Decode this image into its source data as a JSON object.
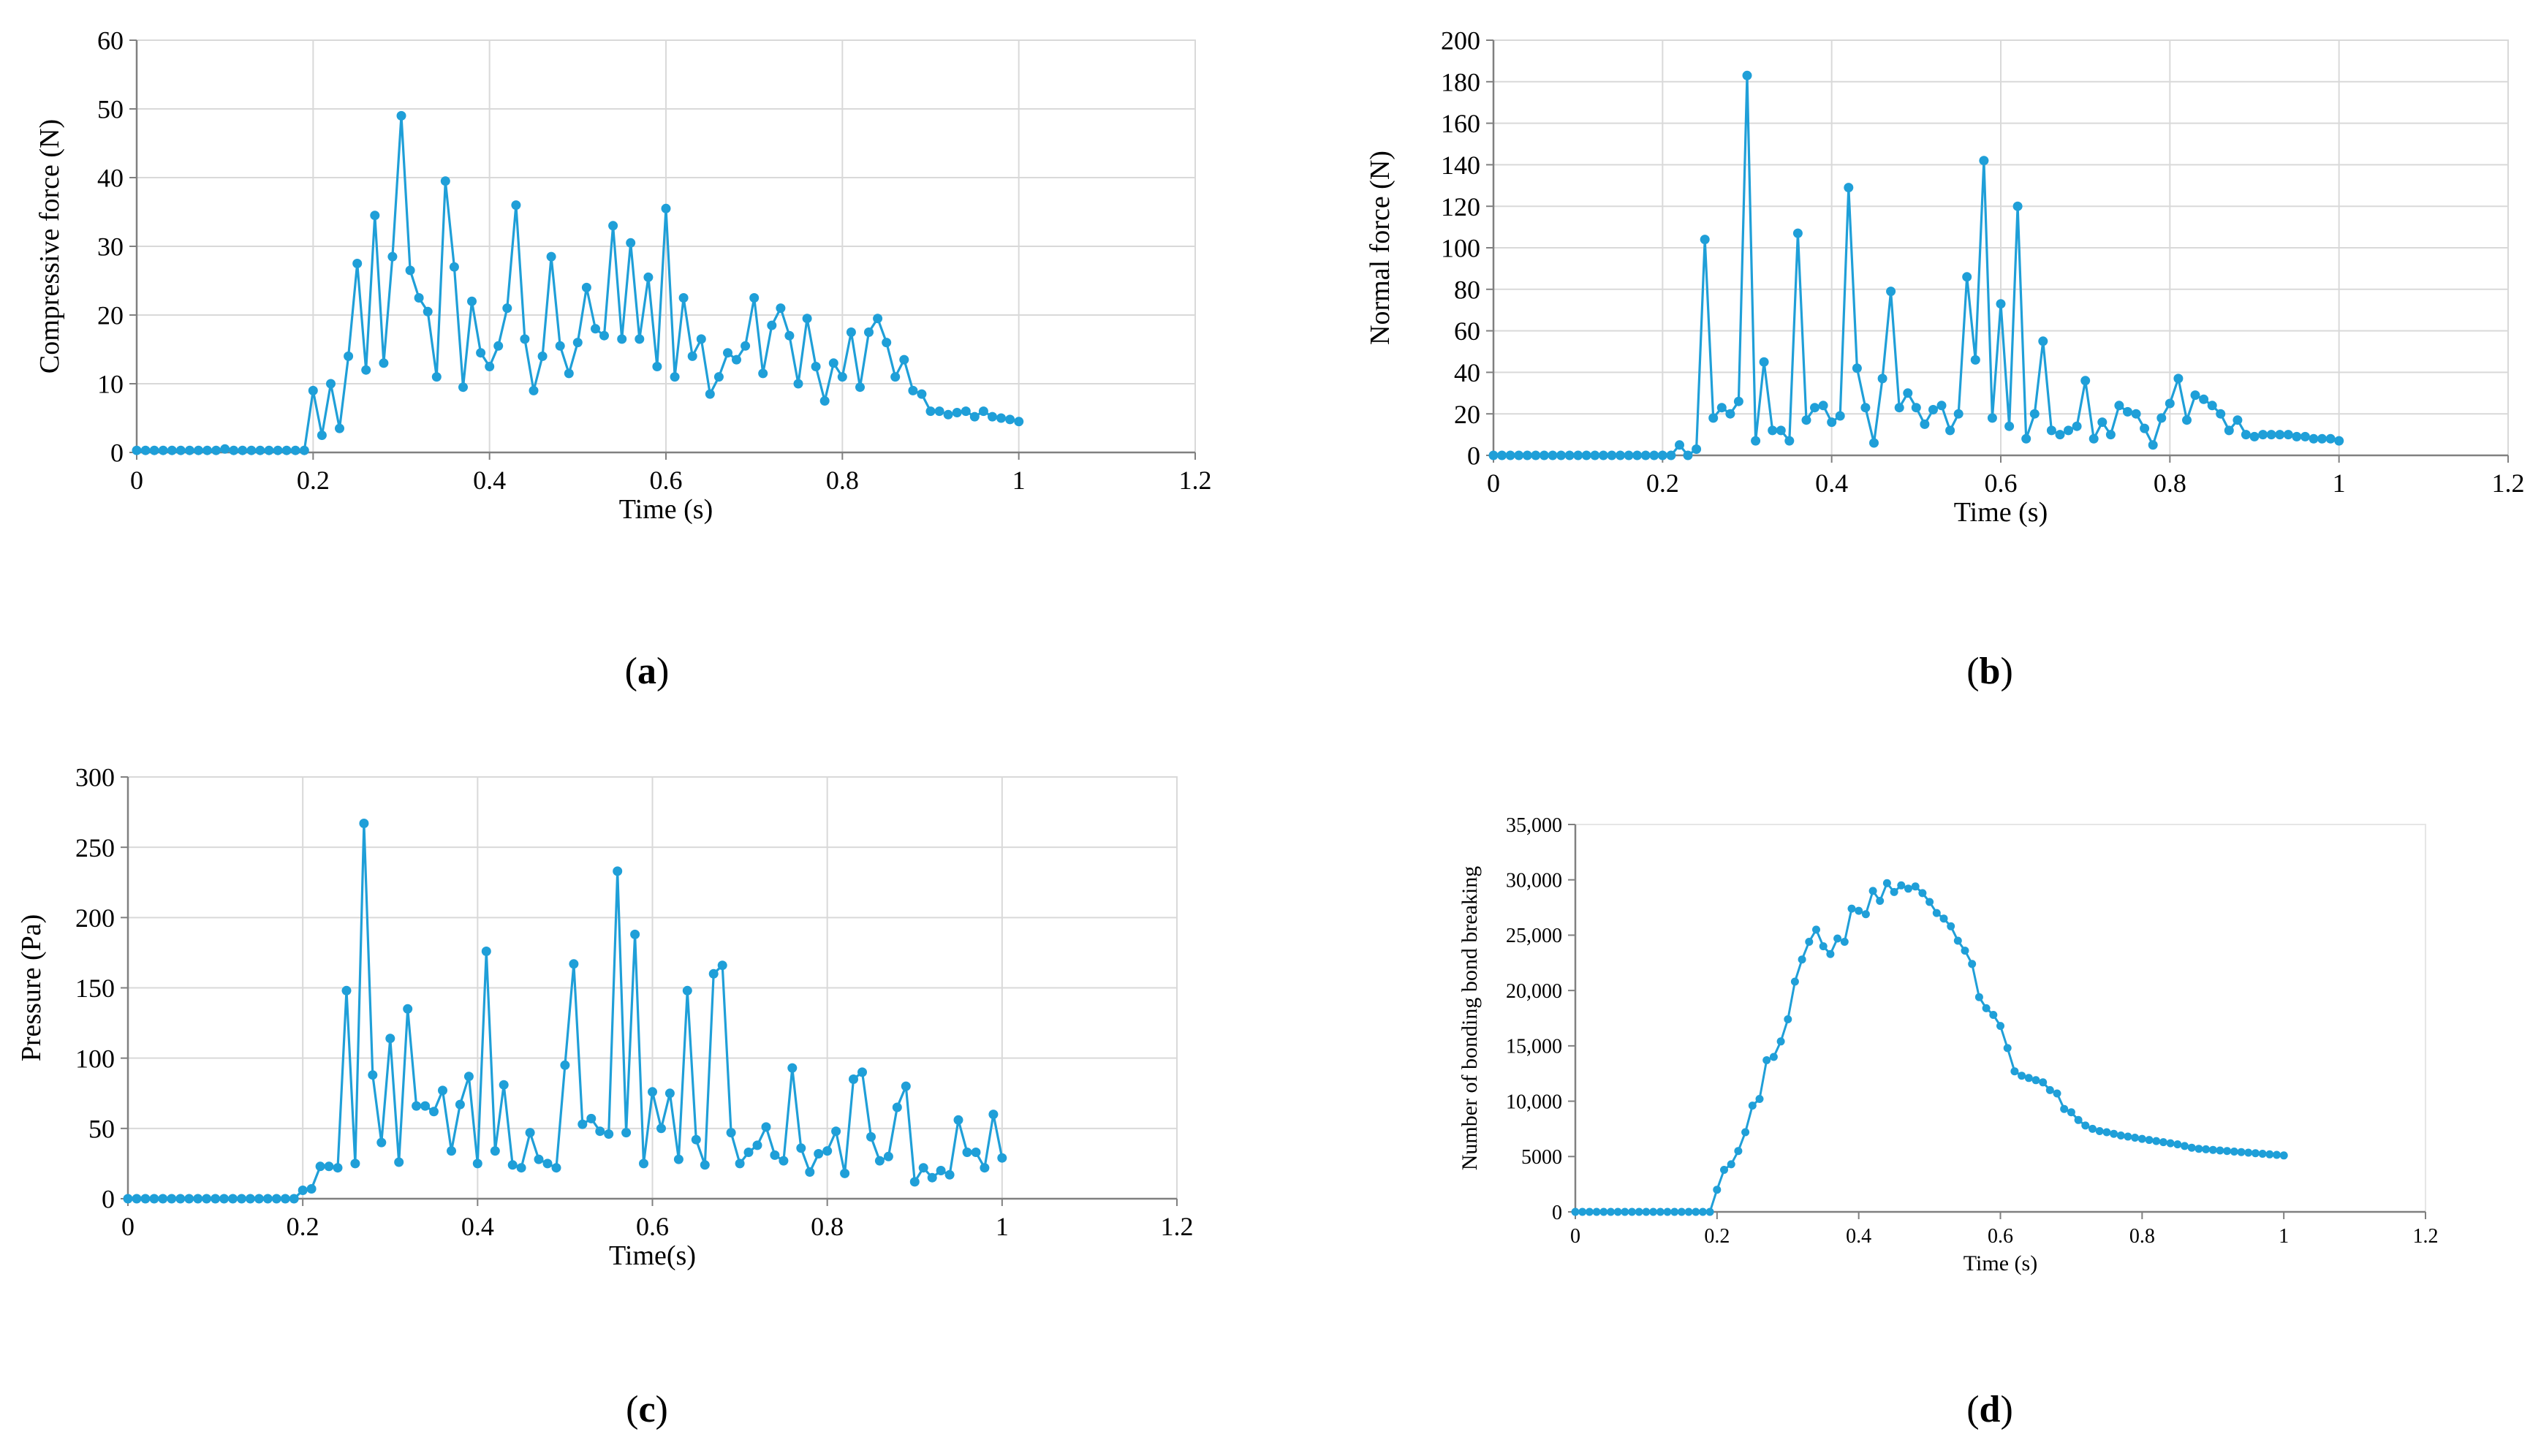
{
  "colors": {
    "series": "#1F9FD8",
    "grid": "#D9D9D9",
    "axis": "#808080",
    "text": "#000000"
  },
  "chart_data": [
    {
      "id": "a",
      "type": "line",
      "panel_label": "a",
      "xlabel": "Time (s)",
      "ylabel": "Compressive force (N)",
      "xlim": [
        0,
        1.2
      ],
      "ylim": [
        0,
        60
      ],
      "x_ticks": [
        "0",
        "0.2",
        "0.4",
        "0.6",
        "0.8",
        "1",
        "1.2"
      ],
      "y_ticks": [
        "0",
        "10",
        "20",
        "30",
        "40",
        "50",
        "60"
      ],
      "grid": true,
      "x": [
        0,
        0.01,
        0.02,
        0.03,
        0.04,
        0.05,
        0.06,
        0.07,
        0.08,
        0.09,
        0.1,
        0.11,
        0.12,
        0.13,
        0.14,
        0.15,
        0.16,
        0.17,
        0.18,
        0.19,
        0.2,
        0.21,
        0.22,
        0.23,
        0.24,
        0.25,
        0.26,
        0.27,
        0.28,
        0.29,
        0.3,
        0.31,
        0.32,
        0.33,
        0.34,
        0.35,
        0.36,
        0.37,
        0.38,
        0.39,
        0.4,
        0.41,
        0.42,
        0.43,
        0.44,
        0.45,
        0.46,
        0.47,
        0.48,
        0.49,
        0.5,
        0.51,
        0.52,
        0.53,
        0.54,
        0.55,
        0.56,
        0.57,
        0.58,
        0.59,
        0.6,
        0.61,
        0.62,
        0.63,
        0.64,
        0.65,
        0.66,
        0.67,
        0.68,
        0.69,
        0.7,
        0.71,
        0.72,
        0.73,
        0.74,
        0.75,
        0.76,
        0.77,
        0.78,
        0.79,
        0.8,
        0.81,
        0.82,
        0.83,
        0.84,
        0.85,
        0.86,
        0.87,
        0.88,
        0.89,
        0.9,
        0.91,
        0.92,
        0.93,
        0.94,
        0.95,
        0.96,
        0.97,
        0.98,
        0.99,
        1.0
      ],
      "y": [
        0.3,
        0.3,
        0.3,
        0.3,
        0.3,
        0.3,
        0.3,
        0.3,
        0.3,
        0.3,
        0.5,
        0.3,
        0.3,
        0.3,
        0.3,
        0.3,
        0.3,
        0.3,
        0.3,
        0.3,
        9,
        2.5,
        10,
        3.5,
        14,
        27.5,
        12,
        34.5,
        13,
        28.5,
        49,
        26.5,
        22.5,
        20.5,
        11,
        39.5,
        27,
        9.5,
        22,
        14.5,
        12.5,
        15.5,
        21,
        36,
        16.5,
        9,
        14,
        28.5,
        15.5,
        11.5,
        16,
        24,
        18,
        17,
        33,
        16.5,
        30.5,
        16.5,
        25.5,
        12.5,
        35.5,
        11,
        22.5,
        14,
        16.5,
        8.5,
        11,
        14.5,
        13.5,
        15.5,
        22.5,
        11.5,
        18.5,
        21,
        17,
        10,
        19.5,
        12.5,
        7.5,
        13,
        11,
        17.5,
        9.5,
        17.5,
        19.5,
        16,
        11,
        13.5,
        9,
        8.5,
        6,
        6,
        5.5,
        5.8,
        6,
        5.2,
        6,
        5.2,
        5,
        4.8,
        4.5
      ]
    },
    {
      "id": "b",
      "type": "line",
      "panel_label": "b",
      "xlabel": "Time (s)",
      "ylabel": "Normal force (N)",
      "xlim": [
        0,
        1.2
      ],
      "ylim": [
        0,
        200
      ],
      "x_ticks": [
        "0",
        "0.2",
        "0.4",
        "0.6",
        "0.8",
        "1",
        "1.2"
      ],
      "y_ticks": [
        "0",
        "20",
        "40",
        "60",
        "80",
        "100",
        "120",
        "140",
        "160",
        "180",
        "200"
      ],
      "grid": true,
      "x": [
        0,
        0.01,
        0.02,
        0.03,
        0.04,
        0.05,
        0.06,
        0.07,
        0.08,
        0.09,
        0.1,
        0.11,
        0.12,
        0.13,
        0.14,
        0.15,
        0.16,
        0.17,
        0.18,
        0.19,
        0.2,
        0.21,
        0.22,
        0.23,
        0.24,
        0.25,
        0.26,
        0.27,
        0.28,
        0.29,
        0.3,
        0.31,
        0.32,
        0.33,
        0.34,
        0.35,
        0.36,
        0.37,
        0.38,
        0.39,
        0.4,
        0.41,
        0.42,
        0.43,
        0.44,
        0.45,
        0.46,
        0.47,
        0.48,
        0.49,
        0.5,
        0.51,
        0.52,
        0.53,
        0.54,
        0.55,
        0.56,
        0.57,
        0.58,
        0.59,
        0.6,
        0.61,
        0.62,
        0.63,
        0.64,
        0.65,
        0.66,
        0.67,
        0.68,
        0.69,
        0.7,
        0.71,
        0.72,
        0.73,
        0.74,
        0.75,
        0.76,
        0.77,
        0.78,
        0.79,
        0.8,
        0.81,
        0.82,
        0.83,
        0.84,
        0.85,
        0.86,
        0.87,
        0.88,
        0.89,
        0.9,
        0.91,
        0.92,
        0.93,
        0.94,
        0.95,
        0.96,
        0.97,
        0.98,
        0.99,
        1.0
      ],
      "y": [
        0,
        0,
        0,
        0,
        0,
        0,
        0,
        0,
        0,
        0,
        0,
        0,
        0,
        0,
        0,
        0,
        0,
        0,
        0,
        0,
        0,
        0,
        5,
        0,
        3,
        104,
        18,
        23,
        20,
        26,
        183,
        7,
        45,
        12,
        12,
        7,
        107,
        17,
        23,
        24,
        16,
        19,
        129,
        42,
        23,
        6,
        37,
        79,
        23,
        30,
        23,
        15,
        22,
        24,
        12,
        20,
        86,
        46,
        142,
        18,
        73,
        14,
        120,
        8,
        20,
        55,
        12,
        10,
        12,
        14,
        36,
        8,
        16,
        10,
        24,
        21,
        20,
        13,
        5,
        18,
        25,
        37,
        17,
        29,
        27,
        24,
        20,
        12,
        17,
        10,
        9,
        10,
        10,
        10,
        10,
        9,
        9,
        8,
        8,
        8,
        7
      ]
    },
    {
      "id": "c",
      "type": "line",
      "panel_label": "c",
      "xlabel": "Time(s)",
      "ylabel": "Pressure (Pa)",
      "xlim": [
        0,
        1.2
      ],
      "ylim": [
        0,
        300
      ],
      "x_ticks": [
        "0",
        "0.2",
        "0.4",
        "0.6",
        "0.8",
        "1",
        "1.2"
      ],
      "y_ticks": [
        "0",
        "50",
        "100",
        "150",
        "200",
        "250",
        "300"
      ],
      "grid": true,
      "x": [
        0,
        0.01,
        0.02,
        0.03,
        0.04,
        0.05,
        0.06,
        0.07,
        0.08,
        0.09,
        0.1,
        0.11,
        0.12,
        0.13,
        0.14,
        0.15,
        0.16,
        0.17,
        0.18,
        0.19,
        0.2,
        0.21,
        0.22,
        0.23,
        0.24,
        0.25,
        0.26,
        0.27,
        0.28,
        0.29,
        0.3,
        0.31,
        0.32,
        0.33,
        0.34,
        0.35,
        0.36,
        0.37,
        0.38,
        0.39,
        0.4,
        0.41,
        0.42,
        0.43,
        0.44,
        0.45,
        0.46,
        0.47,
        0.48,
        0.49,
        0.5,
        0.51,
        0.52,
        0.53,
        0.54,
        0.55,
        0.56,
        0.57,
        0.58,
        0.59,
        0.6,
        0.61,
        0.62,
        0.63,
        0.64,
        0.65,
        0.66,
        0.67,
        0.68,
        0.69,
        0.7,
        0.71,
        0.72,
        0.73,
        0.74,
        0.75,
        0.76,
        0.77,
        0.78,
        0.79,
        0.8,
        0.81,
        0.82,
        0.83,
        0.84,
        0.85,
        0.86,
        0.87,
        0.88,
        0.89,
        0.9,
        0.91,
        0.92,
        0.93,
        0.94,
        0.95,
        0.96,
        0.97,
        0.98,
        0.99,
        1.0
      ],
      "y": [
        0,
        0,
        0,
        0,
        0,
        0,
        0,
        0,
        0,
        0,
        0,
        0,
        0,
        0,
        0,
        0,
        0,
        0,
        0,
        0,
        6,
        7,
        23,
        23,
        22,
        148,
        25,
        267,
        88,
        40,
        114,
        26,
        135,
        66,
        66,
        62,
        77,
        34,
        67,
        87,
        25,
        176,
        34,
        81,
        24,
        22,
        47,
        28,
        25,
        22,
        95,
        167,
        53,
        57,
        48,
        46,
        233,
        47,
        188,
        25,
        76,
        50,
        75,
        28,
        148,
        42,
        24,
        160,
        166,
        47,
        25,
        33,
        38,
        51,
        31,
        27,
        93,
        36,
        19,
        32,
        34,
        48,
        18,
        85,
        90,
        44,
        27,
        30,
        65,
        80,
        12,
        22,
        15,
        20,
        17,
        56,
        33,
        33,
        22,
        60,
        29
      ]
    },
    {
      "id": "d",
      "type": "line",
      "panel_label": "d",
      "xlabel": "Time (s)",
      "ylabel": "Number of bonding bond breaking",
      "xlim": [
        0,
        1.2
      ],
      "ylim": [
        0,
        35000
      ],
      "x_ticks": [
        "0",
        "0.2",
        "0.4",
        "0.6",
        "0.8",
        "1",
        "1.2"
      ],
      "y_ticks": [
        "0",
        "5000",
        "10,000",
        "15,000",
        "20,000",
        "25,000",
        "30,000",
        "35,000"
      ],
      "grid": false,
      "x": [
        0,
        0.01,
        0.02,
        0.03,
        0.04,
        0.05,
        0.06,
        0.07,
        0.08,
        0.09,
        0.1,
        0.11,
        0.12,
        0.13,
        0.14,
        0.15,
        0.16,
        0.17,
        0.18,
        0.19,
        0.2,
        0.21,
        0.22,
        0.23,
        0.24,
        0.25,
        0.26,
        0.27,
        0.28,
        0.29,
        0.3,
        0.31,
        0.32,
        0.33,
        0.34,
        0.35,
        0.36,
        0.37,
        0.38,
        0.39,
        0.4,
        0.41,
        0.42,
        0.43,
        0.44,
        0.45,
        0.46,
        0.47,
        0.48,
        0.49,
        0.5,
        0.51,
        0.52,
        0.53,
        0.54,
        0.55,
        0.56,
        0.57,
        0.58,
        0.59,
        0.6,
        0.61,
        0.62,
        0.63,
        0.64,
        0.65,
        0.66,
        0.67,
        0.68,
        0.69,
        0.7,
        0.71,
        0.72,
        0.73,
        0.74,
        0.75,
        0.76,
        0.77,
        0.78,
        0.79,
        0.8,
        0.81,
        0.82,
        0.83,
        0.84,
        0.85,
        0.86,
        0.87,
        0.88,
        0.89,
        0.9,
        0.91,
        0.92,
        0.93,
        0.94,
        0.95,
        0.96,
        0.97,
        0.98,
        0.99,
        1.0
      ],
      "y": [
        0,
        0,
        0,
        0,
        0,
        0,
        0,
        0,
        0,
        0,
        0,
        0,
        0,
        0,
        0,
        0,
        0,
        0,
        0,
        0,
        2000,
        3800,
        4300,
        5500,
        7200,
        9600,
        10200,
        13700,
        14000,
        15400,
        17400,
        20800,
        22800,
        24400,
        25500,
        24000,
        23300,
        24700,
        24400,
        27400,
        27200,
        26900,
        29000,
        28100,
        29700,
        28900,
        29500,
        29200,
        29400,
        28800,
        28000,
        27000,
        26500,
        25800,
        24500,
        23600,
        22400,
        19400,
        18400,
        17800,
        16800,
        14800,
        12700,
        12300,
        12100,
        11900,
        11700,
        11000,
        10700,
        9300,
        9000,
        8300,
        7800,
        7500,
        7300,
        7200,
        7050,
        6900,
        6800,
        6700,
        6600,
        6500,
        6400,
        6300,
        6200,
        6100,
        5950,
        5800,
        5700,
        5650,
        5600,
        5550,
        5500,
        5450,
        5400,
        5350,
        5300,
        5250,
        5200,
        5150,
        5100
      ]
    }
  ]
}
